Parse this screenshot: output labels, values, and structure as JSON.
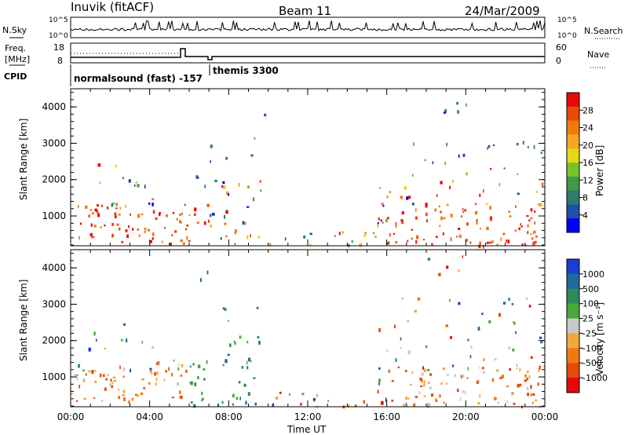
{
  "header": {
    "station": "Inuvik (fitACF)",
    "beam": "Beam 11",
    "date": "24/Mar/2009"
  },
  "summary_panels": {
    "nsky_label": "N.Sky",
    "nsearch_label": "N.Search",
    "freq_label_1": "Freq.",
    "freq_label_2": "[MHz]",
    "nave_label": "Nave",
    "cpid_label": "CPID",
    "noise_ticks": [
      "10^5",
      "10^0"
    ],
    "freq_ticks": [
      "18",
      "8"
    ],
    "nave_ticks": [
      "60",
      "0"
    ],
    "cpid_modes": [
      "normalsound (fast) -157",
      "themis 3300"
    ]
  },
  "chart_data": [
    {
      "type": "heatmap",
      "name": "power",
      "ylabel": "Slant Range [km]",
      "ylim": [
        180,
        4500
      ],
      "yticks": [
        "1000",
        "2000",
        "3000",
        "4000"
      ],
      "colorbar_label": "Power [dB]",
      "colorbar_ticks": [
        "4",
        "8",
        "12",
        "16",
        "20",
        "24",
        "28"
      ],
      "colors": [
        "#0000ff",
        "#1f4fa8",
        "#2f7a6a",
        "#3e9a4a",
        "#77c42a",
        "#e8d61a",
        "#f5a623",
        "#f07a10",
        "#e84a0a",
        "#e80808"
      ]
    },
    {
      "type": "heatmap",
      "name": "velocity",
      "ylabel": "Slant Range [km]",
      "ylim": [
        180,
        4500
      ],
      "yticks": [
        "1000",
        "2000",
        "3000",
        "4000"
      ],
      "colorbar_label": "Velocity [m s⁻¹]",
      "colorbar_ticks": [
        "1000",
        "500",
        "100",
        "25",
        "-25",
        "-100",
        "-500",
        "-1000"
      ],
      "colors": [
        "#1a3fd0",
        "#1f6a9a",
        "#2f8a5a",
        "#4aa83a",
        "#c8c8c8",
        "#f0a840",
        "#f07a10",
        "#e84a0a",
        "#e80808"
      ],
      "xlabel": "Time UT",
      "xticks": [
        "00:00",
        "04:00",
        "08:00",
        "12:00",
        "16:00",
        "20:00",
        "00:00"
      ]
    }
  ]
}
